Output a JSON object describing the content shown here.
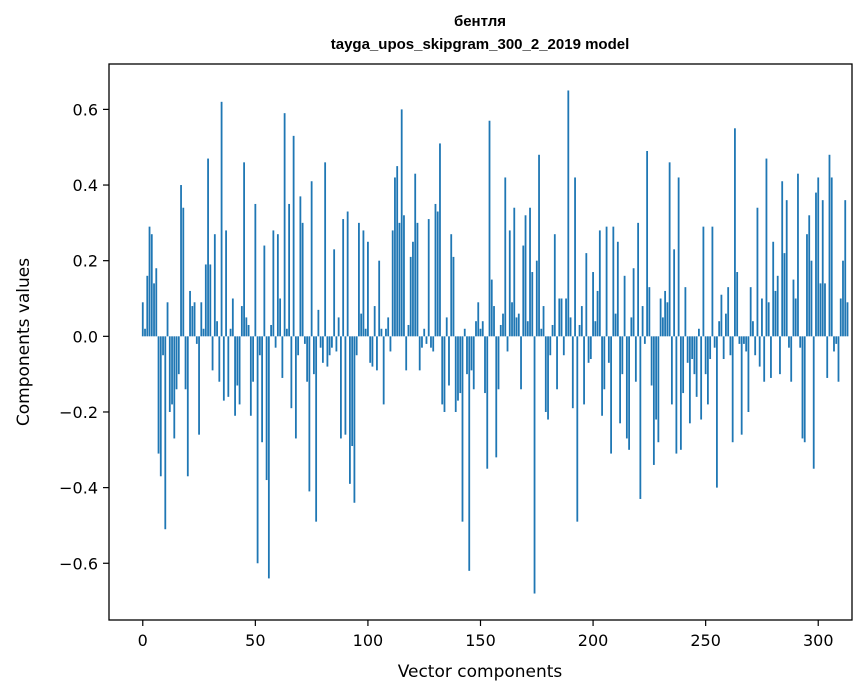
{
  "chart_data": {
    "type": "bar",
    "title": "бентля",
    "subtitle": "tayga_upos_skipgram_300_2_2019 model",
    "xlabel": "Vector components",
    "ylabel": "Components values",
    "xlim": [
      -15,
      315
    ],
    "ylim": [
      -0.75,
      0.72
    ],
    "xticks": [
      0,
      50,
      100,
      150,
      200,
      250,
      300
    ],
    "yticks": [
      -0.6,
      -0.4,
      -0.2,
      0.0,
      0.2,
      0.4,
      0.6
    ],
    "ytick_labels": [
      "−0.6",
      "−0.4",
      "−0.2",
      "0.0",
      "0.2",
      "0.4",
      "0.6"
    ],
    "grid": false,
    "bar_color": "#1f77b4",
    "values": [
      0.09,
      0.02,
      0.16,
      0.29,
      0.27,
      0.14,
      0.18,
      -0.31,
      -0.37,
      -0.05,
      -0.51,
      0.09,
      -0.2,
      -0.18,
      -0.27,
      -0.14,
      -0.1,
      0.4,
      0.34,
      -0.14,
      -0.37,
      0.12,
      0.08,
      0.09,
      -0.02,
      -0.26,
      0.09,
      0.02,
      0.19,
      0.47,
      0.19,
      -0.09,
      0.27,
      0.04,
      -0.12,
      0.62,
      -0.17,
      0.28,
      -0.16,
      0.02,
      0.1,
      -0.21,
      -0.13,
      -0.18,
      0.08,
      0.46,
      0.05,
      0.03,
      -0.21,
      -0.12,
      0.35,
      -0.6,
      -0.05,
      -0.28,
      0.24,
      -0.38,
      -0.64,
      0.03,
      0.28,
      -0.03,
      0.27,
      0.1,
      -0.11,
      0.59,
      0.02,
      0.35,
      -0.19,
      0.53,
      -0.27,
      -0.05,
      0.37,
      0.3,
      -0.02,
      -0.12,
      -0.41,
      0.41,
      -0.1,
      -0.49,
      0.07,
      -0.03,
      -0.07,
      0.46,
      -0.08,
      -0.05,
      -0.03,
      0.23,
      -0.04,
      0.05,
      -0.27,
      0.31,
      -0.26,
      0.33,
      -0.39,
      -0.29,
      -0.44,
      -0.05,
      0.3,
      0.06,
      0.28,
      0.02,
      0.25,
      -0.07,
      -0.08,
      0.08,
      -0.09,
      0.2,
      0.02,
      -0.18,
      0.02,
      0.05,
      -0.04,
      0.28,
      0.42,
      0.45,
      0.3,
      0.6,
      0.32,
      -0.09,
      0.03,
      0.21,
      0.25,
      0.43,
      0.3,
      -0.09,
      -0.03,
      0.02,
      -0.02,
      0.31,
      -0.03,
      -0.04,
      0.35,
      0.33,
      0.51,
      -0.18,
      -0.2,
      0.05,
      -0.13,
      0.27,
      0.21,
      -0.2,
      -0.17,
      -0.15,
      -0.49,
      0.02,
      -0.1,
      -0.62,
      -0.09,
      -0.14,
      0.04,
      0.09,
      0.02,
      0.04,
      -0.15,
      -0.35,
      0.57,
      0.15,
      0.08,
      -0.32,
      -0.14,
      0.03,
      0.06,
      0.42,
      -0.04,
      0.28,
      0.09,
      0.34,
      0.05,
      0.06,
      -0.14,
      0.24,
      0.32,
      0.04,
      0.34,
      0.17,
      -0.68,
      0.2,
      0.48,
      0.02,
      0.08,
      -0.2,
      -0.22,
      -0.05,
      0.03,
      0.27,
      -0.14,
      0.1,
      0.1,
      -0.05,
      0.1,
      0.65,
      0.05,
      -0.19,
      0.42,
      -0.49,
      0.03,
      0.08,
      -0.18,
      0.22,
      -0.07,
      -0.06,
      0.17,
      0.04,
      0.12,
      0.28,
      -0.21,
      -0.14,
      0.29,
      -0.07,
      -0.31,
      0.29,
      0.06,
      0.25,
      -0.23,
      -0.1,
      0.16,
      -0.27,
      -0.3,
      0.05,
      0.18,
      -0.12,
      0.3,
      -0.43,
      0.08,
      -0.02,
      0.49,
      0.13,
      -0.13,
      -0.34,
      -0.22,
      -0.28,
      0.1,
      0.05,
      0.12,
      0.09,
      0.46,
      -0.18,
      0.23,
      -0.31,
      0.42,
      -0.3,
      -0.15,
      0.13,
      -0.07,
      -0.23,
      -0.06,
      -0.1,
      -0.16,
      0.02,
      -0.22,
      0.29,
      -0.1,
      -0.18,
      -0.06,
      0.29,
      -0.03,
      -0.4,
      0.04,
      0.11,
      -0.06,
      0.06,
      0.13,
      -0.05,
      -0.28,
      0.55,
      0.17,
      -0.02,
      -0.26,
      -0.02,
      -0.04,
      -0.2,
      0.13,
      0.04,
      -0.05,
      0.34,
      -0.08,
      0.1,
      -0.12,
      0.47,
      0.09,
      -0.11,
      0.25,
      0.12,
      0.16,
      -0.1,
      0.41,
      0.22,
      0.36,
      -0.03,
      -0.12,
      0.15,
      0.1,
      0.43,
      -0.03,
      -0.27,
      -0.28,
      0.27,
      0.32,
      0.2,
      -0.35,
      0.38,
      0.42,
      0.14,
      0.36,
      0.14,
      -0.11,
      0.48,
      0.42,
      -0.04,
      -0.02,
      -0.12,
      0.1,
      0.2,
      0.36,
      0.09
    ]
  }
}
